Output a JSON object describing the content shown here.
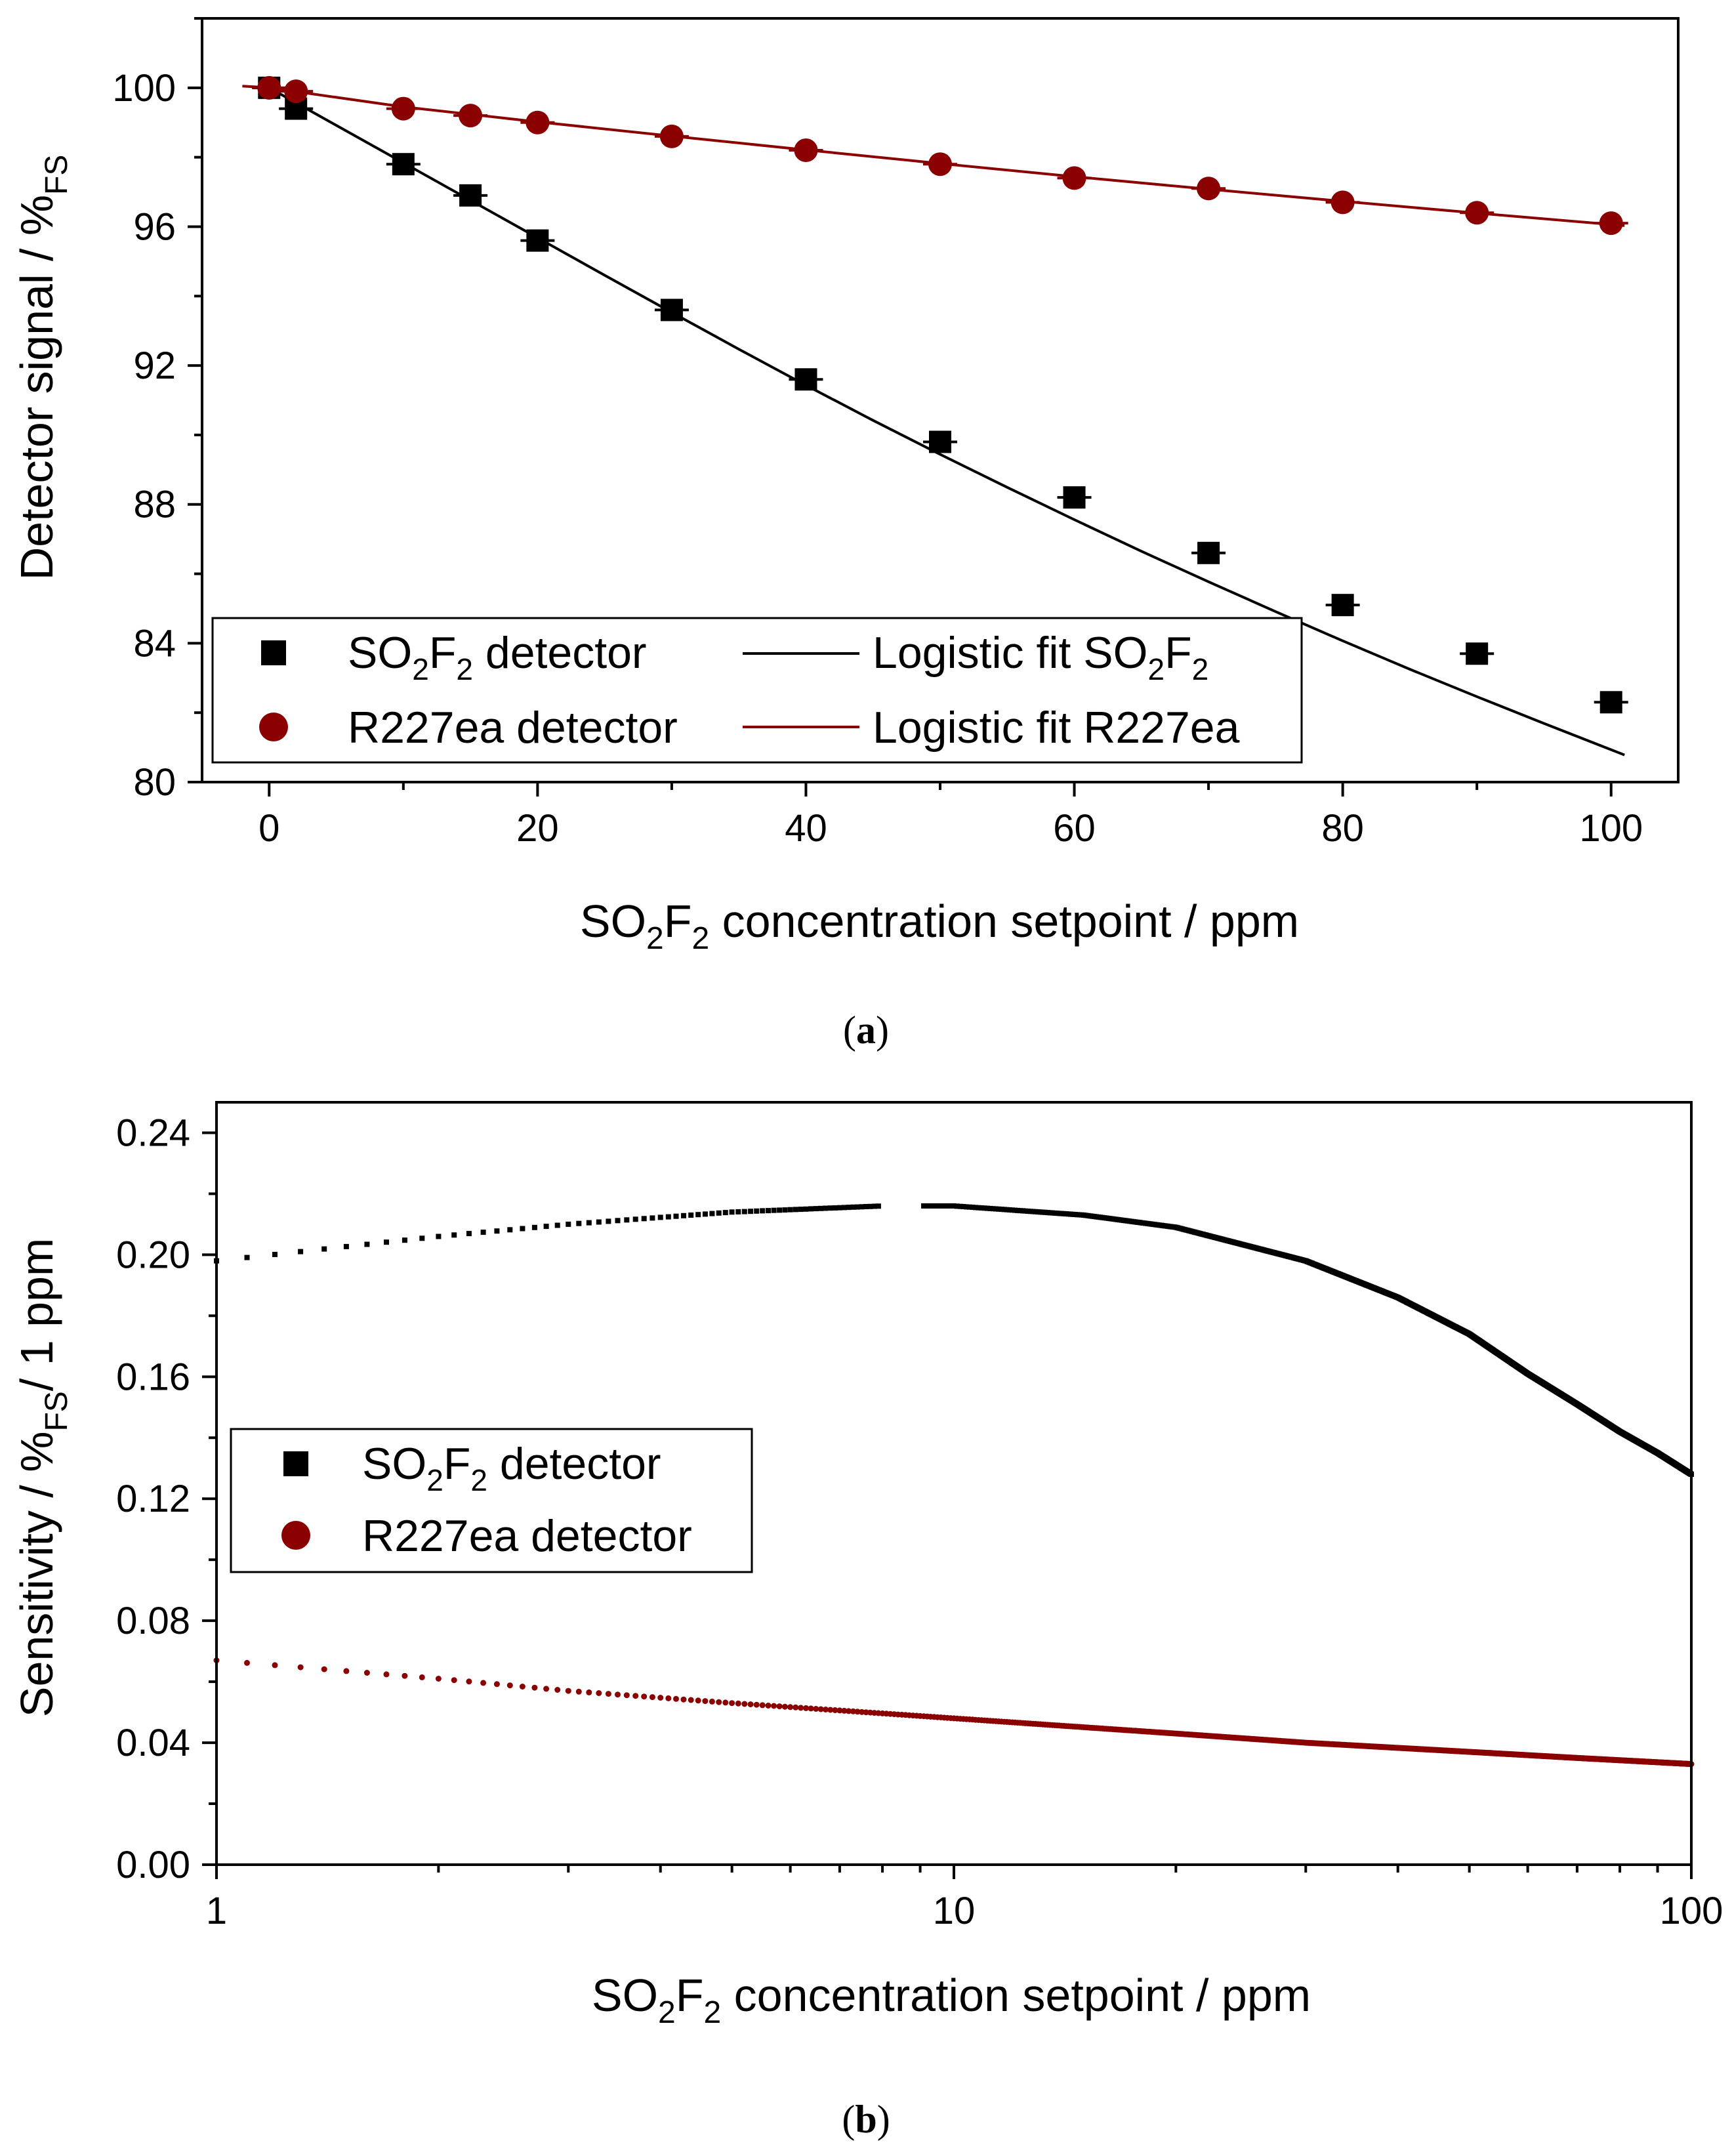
{
  "chart_data": [
    {
      "type": "scatter",
      "panel_label": "(a)",
      "ylabel": "Detector signal / %",
      "ylabel_sub": "FS",
      "xlabel": {
        "a": "SO",
        "s1": "2",
        "b": "F",
        "s2": "2",
        "c": " concentration setpoint / ppm"
      },
      "xlim": [
        -5,
        105
      ],
      "ylim": [
        80,
        102
      ],
      "x_ticks": [
        0,
        20,
        40,
        60,
        80,
        100
      ],
      "y_ticks": [
        80,
        84,
        88,
        92,
        96,
        100
      ],
      "x_tick_labels": [
        "0",
        "20",
        "40",
        "60",
        "80",
        "100"
      ],
      "y_tick_labels": [
        "80",
        "84",
        "88",
        "92",
        "96",
        "100"
      ],
      "series": [
        {
          "name": "SO2F2 detector",
          "marker": "square",
          "color": "#000000",
          "x": [
            0,
            2,
            10,
            15,
            20,
            30,
            40,
            50,
            60,
            70,
            80,
            90,
            100
          ],
          "y": [
            100.0,
            99.4,
            97.8,
            96.9,
            95.6,
            93.6,
            91.6,
            89.8,
            88.2,
            86.6,
            85.1,
            83.7,
            82.3
          ]
        },
        {
          "name": "R227ea detector",
          "marker": "circle",
          "color": "#8b0000",
          "x": [
            0,
            2,
            10,
            15,
            20,
            30,
            40,
            50,
            60,
            70,
            80,
            90,
            100
          ],
          "y": [
            100.0,
            99.9,
            99.4,
            99.2,
            99.0,
            98.6,
            98.2,
            97.8,
            97.4,
            97.1,
            96.7,
            96.4,
            96.1
          ]
        },
        {
          "name": "Logistic fit SO2F2",
          "line": true,
          "color": "#000000",
          "x": [
            0,
            5,
            10,
            15,
            20,
            25,
            30,
            35,
            40,
            45,
            50,
            55,
            60,
            65,
            70,
            75,
            80,
            85,
            90,
            95,
            101
          ],
          "y": [
            100.0,
            98.92,
            97.84,
            96.76,
            95.68,
            94.6,
            93.53,
            92.47,
            91.43,
            90.42,
            89.44,
            88.49,
            87.56,
            86.65,
            85.77,
            84.91,
            84.07,
            83.25,
            82.46,
            81.69,
            80.78
          ]
        },
        {
          "name": "Logistic fit R227ea",
          "line": true,
          "color": "#8b0000",
          "x": [
            -2,
            0,
            10,
            20,
            30,
            40,
            50,
            60,
            70,
            80,
            90,
            101
          ],
          "y": [
            100.05,
            100.0,
            99.45,
            99.02,
            98.61,
            98.21,
            97.82,
            97.44,
            97.08,
            96.73,
            96.39,
            96.03
          ]
        }
      ],
      "legend": {
        "items": [
          {
            "a": "SO",
            "s1": "2",
            "b": "F",
            "s2": "2",
            "c": " detector"
          },
          {
            "a": "Logistic fit SO",
            "s1": "2",
            "b": "F",
            "s2": "2",
            "c": ""
          },
          {
            "text": "R227ea detector"
          },
          {
            "text": "Logistic fit R227ea"
          }
        ],
        "placement": "bottom-left"
      }
    },
    {
      "type": "scatter",
      "panel_label": "(b)",
      "xscale": "log",
      "ylabel": {
        "a": "Sensitivity / %",
        "sub": "FS",
        "b": "/ 1 ppm"
      },
      "xlabel": {
        "a": "SO",
        "s1": "2",
        "b": "F",
        "s2": "2",
        "c": " concentration setpoint / ppm"
      },
      "xlim": [
        1,
        100
      ],
      "ylim": [
        0.0,
        0.25
      ],
      "x_ticks": [
        1,
        10,
        100
      ],
      "x_tick_labels": [
        "1",
        "10",
        "100"
      ],
      "y_ticks": [
        0.0,
        0.04,
        0.08,
        0.12,
        0.16,
        0.2,
        0.24
      ],
      "y_tick_labels": [
        "0.00",
        "0.04",
        "0.08",
        "0.12",
        "0.16",
        "0.20",
        "0.24"
      ],
      "series": [
        {
          "name": "SO2F2 detector",
          "marker": "square",
          "color": "#000000",
          "x": [
            1,
            2,
            3,
            5,
            8,
            10,
            15,
            20,
            30,
            40,
            50,
            60,
            70,
            80,
            90,
            100
          ],
          "y": [
            0.198,
            0.206,
            0.21,
            0.214,
            0.216,
            0.216,
            0.213,
            0.209,
            0.198,
            0.186,
            0.174,
            0.161,
            0.151,
            0.142,
            0.135,
            0.128
          ]
        },
        {
          "name": "R227ea detector",
          "marker": "circle",
          "color": "#8b0000",
          "x": [
            1,
            2,
            3,
            5,
            10,
            20,
            30,
            50,
            70,
            100
          ],
          "y": [
            0.067,
            0.061,
            0.057,
            0.053,
            0.048,
            0.043,
            0.04,
            0.037,
            0.035,
            0.033
          ]
        }
      ],
      "legend": {
        "items": [
          {
            "a": "SO",
            "s1": "2",
            "b": "F",
            "s2": "2",
            "c": " detector"
          },
          {
            "text": "R227ea detector"
          }
        ],
        "placement": "center-left"
      }
    }
  ]
}
